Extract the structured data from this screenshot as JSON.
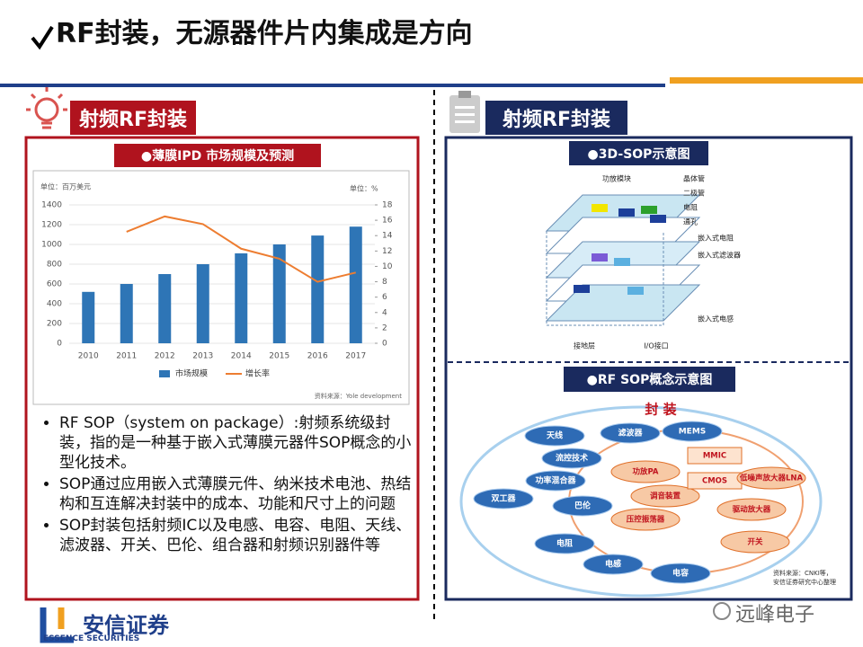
{
  "title": "RF封装，无源器件片内集成是方向",
  "left": {
    "header": "射频RF封装",
    "chart_label": "●薄膜IPD 市场规模及预测",
    "chart_data": {
      "type": "bar_line",
      "y_unit": "单位：百万美元",
      "y2_unit": "单位：%",
      "categories": [
        "2010",
        "2011",
        "2012",
        "2013",
        "2014",
        "2015",
        "2016",
        "2017"
      ],
      "series": [
        {
          "name": "市场规模",
          "type": "bar",
          "color": "#2e75b6",
          "values": [
            520,
            600,
            700,
            800,
            910,
            1000,
            1090,
            1180
          ]
        },
        {
          "name": "增长率",
          "type": "line",
          "axis": "y2",
          "color": "#ed7d31",
          "values": [
            null,
            14.5,
            16.5,
            15.5,
            12.3,
            11,
            8,
            9.2
          ]
        }
      ],
      "ylim": [
        0,
        1400
      ],
      "yticks": [
        0,
        200,
        400,
        600,
        800,
        1000,
        1200,
        1400
      ],
      "y2lim": [
        0,
        18
      ],
      "y2ticks": [
        0,
        2,
        4,
        6,
        8,
        10,
        12,
        14,
        16,
        18
      ],
      "source": "资料来源：Yole development"
    },
    "bullets": [
      "RF SOP（system on package）:射频系统级封装，指的是一种基于嵌入式薄膜元器件SOP概念的小型化技术。",
      "SOP通过应用嵌入式薄膜元件、纳米技术电池、热结构和互连解决封装中的成本、功能和尺寸上的问题",
      "SOP封装包括射频IC以及电感、电容、电阻、天线、滤波器、开关、巴伦、组合器和射频识别器件等"
    ]
  },
  "right": {
    "header": "射频RF封装",
    "diagram1_label": "●3D-SOP示意图",
    "diagram1_labels": [
      "功放模块",
      "晶体管",
      "二极管",
      "电阻",
      "通孔",
      "嵌入式电阻",
      "嵌入式滤波器",
      "嵌入式电感",
      "接地层",
      "I/O接口"
    ],
    "diagram2_label": "●RF SOP概念示意图",
    "diagram2_title": "封 装",
    "outer_nodes": [
      "天线",
      "滤波器",
      "MEMS",
      "流控技术",
      "功率混合器",
      "双工器",
      "巴伦",
      "电阻",
      "电感",
      "电容"
    ],
    "inner_nodes": [
      "功放PA",
      "调音装置",
      "压控振荡器",
      "MMIC",
      "CMOS",
      "低噪声放大器LNA",
      "驱动放大器",
      "开关"
    ],
    "source": [
      "资料来源：CNKI等，",
      "安信证券研究中心整理"
    ]
  },
  "footer": {
    "logo_cn": "安信证券",
    "logo_en": "ESSENCE SECURITIES",
    "watermark": "远峰电子"
  }
}
